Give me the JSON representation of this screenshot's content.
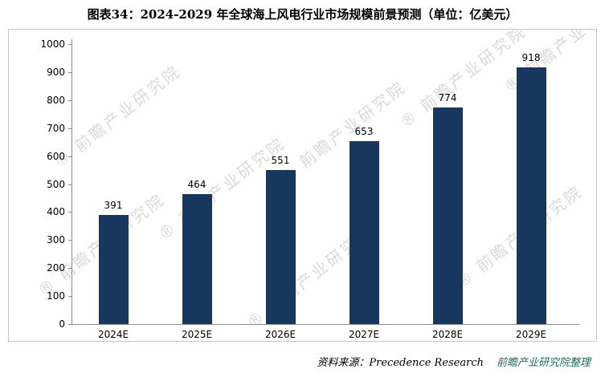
{
  "title": "图表34：2024-2029 年全球海上风电行业市场规模前景预测（单位：亿美元）",
  "watermark": {
    "text": "前瞻产业研究院",
    "color": "#c4c4c4"
  },
  "source": {
    "prefix": "资料来源：Precedence Research",
    "suffix": "前瞻产业研究院整理"
  },
  "chart_data": {
    "type": "bar",
    "title": "图表34：2024-2029 年全球海上风电行业市场规模前景预测（单位：亿美元）",
    "categories": [
      "2024E",
      "2025E",
      "2026E",
      "2027E",
      "2028E",
      "2029E"
    ],
    "values": [
      391,
      464,
      551,
      653,
      774,
      918
    ],
    "xlabel": "",
    "ylabel": "",
    "ylim": [
      0,
      1000
    ],
    "ytick_step": 100,
    "yticks": [
      0,
      100,
      200,
      300,
      400,
      500,
      600,
      700,
      800,
      900,
      1000
    ],
    "bar_color": "#17375E",
    "grid": false,
    "legend": false,
    "value_labels": true,
    "unit": "亿美元"
  }
}
